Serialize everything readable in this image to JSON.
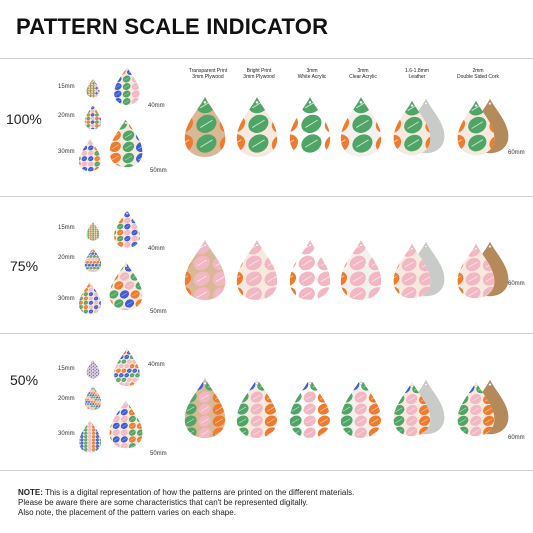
{
  "title": "PATTERN SCALE INDICATOR",
  "materials": [
    {
      "line1": "Transparent Print",
      "line2": "3mm Plywood"
    },
    {
      "line1": "Bright Print",
      "line2": "3mm Plywood"
    },
    {
      "line1": "3mm",
      "line2": "White Acrylic"
    },
    {
      "line1": "3mm",
      "line2": "Clear Acrylic"
    },
    {
      "line1": "1.6-1.8mm",
      "line2": "Leather"
    },
    {
      "line1": "2mm",
      "line2": "Double Sided Cork"
    }
  ],
  "rows": [
    {
      "scale": "100%",
      "sizes": [
        "15mm",
        "20mm",
        "30mm",
        "40mm",
        "50mm"
      ],
      "side_size": "60mm"
    },
    {
      "scale": "75%",
      "sizes": [
        "15mm",
        "20mm",
        "30mm",
        "40mm",
        "50mm"
      ],
      "side_size": "60mm"
    },
    {
      "scale": "50%",
      "sizes": [
        "15mm",
        "20mm",
        "30mm",
        "40mm",
        "50mm"
      ],
      "side_size": "60mm"
    }
  ],
  "note": {
    "label": "NOTE:",
    "line1": " This is a digital representation of how the patterns are printed on the different materials.",
    "line2": "Please be aware there are some characteristics that can't be represented digitally.",
    "line3": "Also note, the placement of the pattern varies on each shape."
  },
  "colors": {
    "orange": "#ee7b2e",
    "blue": "#3d5fd6",
    "green": "#4fa565",
    "pink": "#f2b7c3",
    "cream": "#f6eadf",
    "plywood": "#d9b896",
    "leather": "#c9cbc8",
    "cork": "#b58a5a"
  }
}
